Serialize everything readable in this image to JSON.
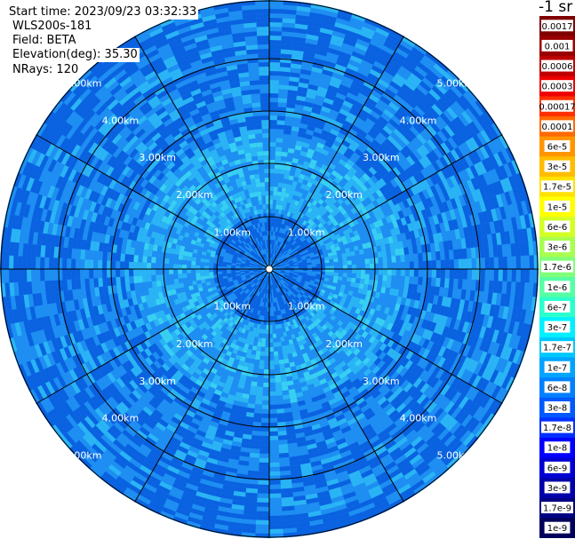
{
  "header": {
    "start_time": "Start time: 2023/09/23 03:32:33",
    "instrument": "WLS200s-181",
    "field": "Field: BETA",
    "elevation": "Elevation(deg): 35.30",
    "nrays": "NRays: 120"
  },
  "colorbar": {
    "unit_label": "-1 sr",
    "labels": [
      "0.0017",
      "0.001",
      "0.0006",
      "0.0003",
      "0.00017",
      "0.0001",
      "6e-5",
      "3e-5",
      "1.7e-5",
      "1e-5",
      "6e-6",
      "3e-6",
      "1.7e-6",
      "1e-6",
      "6e-7",
      "3e-7",
      "1.7e-7",
      "1e-7",
      "6e-8",
      "3e-8",
      "1.7e-8",
      "1e-8",
      "6e-9",
      "3e-9",
      "1.7e-9",
      "1e-9"
    ],
    "colors": [
      "#800000",
      "#9a0000",
      "#bf0000",
      "#ee0000",
      "#ff3000",
      "#ff6a00",
      "#ff9600",
      "#ffbd00",
      "#ffe200",
      "#ffff00",
      "#d4ff24",
      "#a8ff50",
      "#80ff7a",
      "#56ffa4",
      "#2cffce",
      "#00f0ff",
      "#00c8ff",
      "#00a4ff",
      "#0080ff",
      "#0058ff",
      "#0030ff",
      "#0000ff",
      "#0000d4",
      "#0000aa",
      "#000084",
      "#00005c"
    ]
  },
  "range_rings": [
    "1.00km",
    "2.00km",
    "3.00km",
    "4.00km",
    "5.00km"
  ],
  "palette": {
    "deep": "#0a62e0",
    "mid": "#1e8ef2",
    "light": "#2ab4f5",
    "cyan": "#38d0f2",
    "ring": "#000000"
  }
}
